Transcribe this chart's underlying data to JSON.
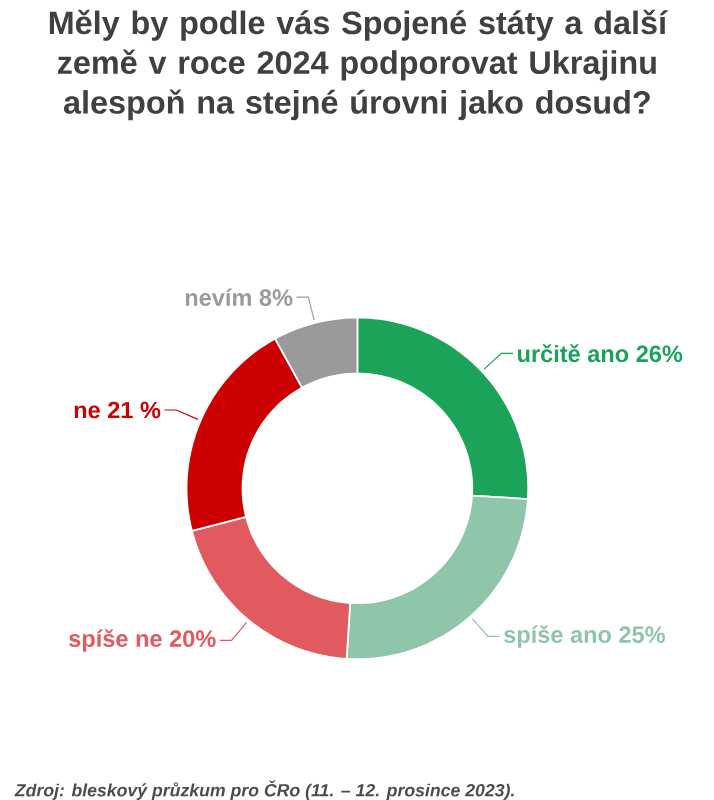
{
  "chart_data": {
    "type": "donut",
    "title": "Měly by podle vás Spojené státy a další země v roce 2024 podporovat Ukrajinu alespoň na stejné úrovni jako dosud?",
    "categories": [
      "určitě ano",
      "spíše ano",
      "spíše ne",
      "ne",
      "nevím"
    ],
    "values": [
      26,
      25,
      20,
      21,
      8
    ],
    "value_labels": [
      "26%",
      "25%",
      "20%",
      "21 %",
      "8%"
    ],
    "colors": [
      "#1ba35a",
      "#8fc5a9",
      "#e05a5f",
      "#cc0000",
      "#9a9a9a"
    ],
    "annotations": [
      "Zdroj: bleskový průzkum pro ČRo (11. – 12. prosince 2023)."
    ]
  }
}
